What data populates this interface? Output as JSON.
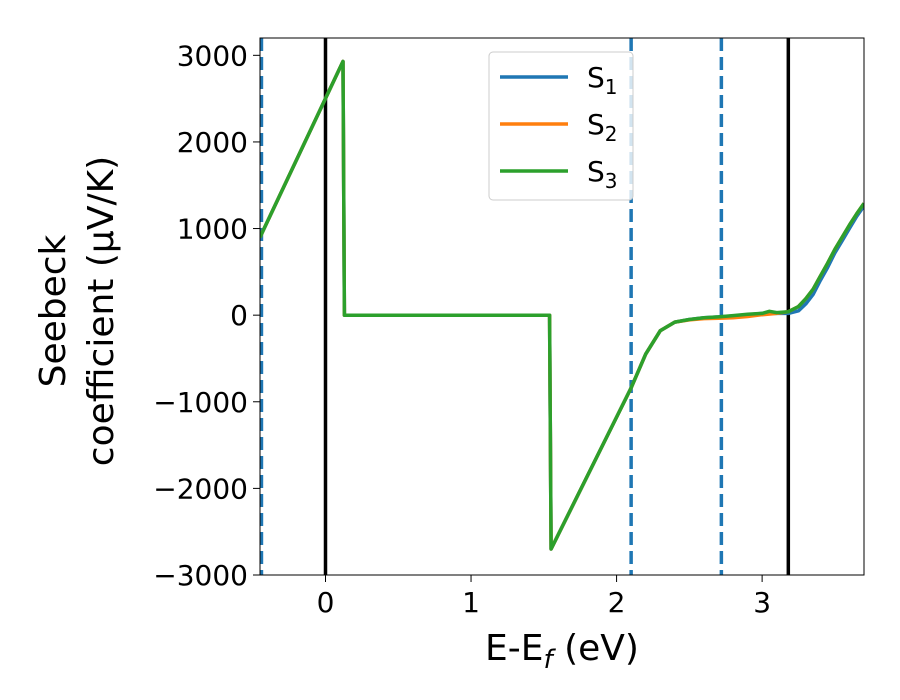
{
  "chart_data": {
    "type": "line",
    "xlabel": "E-E",
    "xlabel_sub": "f",
    "xlabel_unit": " (eV)",
    "ylabel_line1": "Seebeck",
    "ylabel_line2": "coefficient  (μV/K)",
    "xlim": [
      -0.45,
      3.7
    ],
    "ylim": [
      -3000,
      3200
    ],
    "xticks": [
      0,
      1,
      2,
      3
    ],
    "xtick_labels": [
      "0",
      "1",
      "2",
      "3"
    ],
    "yticks": [
      -3000,
      -2000,
      -1000,
      0,
      1000,
      2000,
      3000
    ],
    "ytick_labels": [
      "−3000",
      "−2000",
      "−1000",
      "0",
      "1000",
      "2000",
      "3000"
    ],
    "grid": false,
    "legend_position": "top-center",
    "vlines_solid": [
      0.0,
      3.18
    ],
    "vlines_dashed": [
      -0.44,
      2.1,
      2.72
    ],
    "series": [
      {
        "name": "S",
        "sub": "1",
        "color": "#1f77b4",
        "x": [
          -0.45,
          0.12,
          0.12,
          0.13,
          1.54,
          1.54,
          1.55,
          2.1,
          2.2,
          2.3,
          2.4,
          2.5,
          2.6,
          2.7,
          2.8,
          2.9,
          3.0,
          3.1,
          3.18,
          3.25,
          3.3,
          3.35,
          3.4,
          3.45,
          3.5,
          3.55,
          3.6,
          3.65,
          3.7
        ],
        "y": [
          900,
          2930,
          2930,
          0,
          0,
          -50,
          -2700,
          -840,
          -450,
          -180,
          -80,
          -50,
          -30,
          -20,
          -10,
          5,
          20,
          20,
          20,
          50,
          130,
          240,
          400,
          550,
          720,
          860,
          1000,
          1140,
          1260
        ]
      },
      {
        "name": "S",
        "sub": "2",
        "color": "#ff7f0e",
        "x": [
          -0.45,
          0.12,
          0.12,
          0.13,
          1.54,
          1.54,
          1.55,
          2.1,
          2.2,
          2.3,
          2.4,
          2.5,
          2.6,
          2.7,
          2.8,
          2.9,
          3.0,
          3.1,
          3.18,
          3.25,
          3.3,
          3.35,
          3.4,
          3.45,
          3.5,
          3.55,
          3.6,
          3.65,
          3.7
        ],
        "y": [
          900,
          2930,
          2930,
          0,
          0,
          -50,
          -2700,
          -840,
          -450,
          -180,
          -80,
          -55,
          -40,
          -35,
          -30,
          -15,
          5,
          20,
          40,
          100,
          190,
          300,
          450,
          600,
          760,
          900,
          1040,
          1170,
          1290
        ]
      },
      {
        "name": "S",
        "sub": "3",
        "color": "#2ca02c",
        "x": [
          -0.45,
          0.12,
          0.12,
          0.13,
          1.54,
          1.54,
          1.55,
          2.1,
          2.2,
          2.3,
          2.4,
          2.5,
          2.6,
          2.7,
          2.8,
          2.9,
          3.0,
          3.05,
          3.1,
          3.18,
          3.25,
          3.3,
          3.35,
          3.4,
          3.45,
          3.5,
          3.55,
          3.6,
          3.65,
          3.7
        ],
        "y": [
          900,
          2930,
          2930,
          0,
          0,
          -50,
          -2700,
          -840,
          -450,
          -180,
          -80,
          -50,
          -30,
          -20,
          -5,
          10,
          20,
          45,
          30,
          40,
          100,
          190,
          300,
          450,
          600,
          760,
          900,
          1040,
          1170,
          1290
        ]
      }
    ]
  }
}
